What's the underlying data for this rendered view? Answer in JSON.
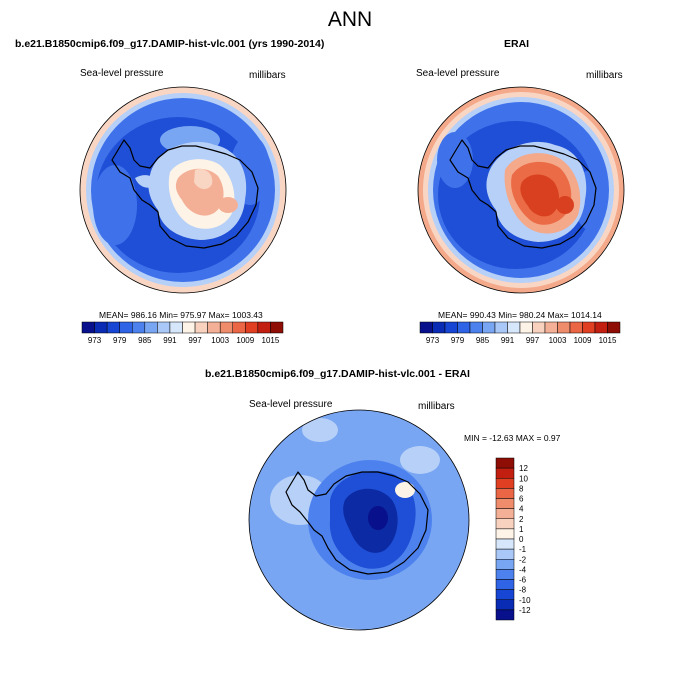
{
  "figure_title": "ANN",
  "panels": [
    {
      "title": "b.e21.B1850cmip6.f09_g17.DAMIP-hist-vlc.001 (yrs 1990-2014)",
      "variable": "Sea-level pressure",
      "units": "millibars",
      "stats": "MEAN= 986.16  Min= 975.97  Max= 1003.43"
    },
    {
      "title": "ERAI",
      "variable": "Sea-level pressure",
      "units": "millibars",
      "stats": "MEAN= 990.43  Min= 980.24  Max= 1014.14"
    },
    {
      "title": "b.e21.B1850cmip6.f09_g17.DAMIP-hist-vlc.001 - ERAI",
      "variable": "Sea-level pressure",
      "units": "millibars",
      "stats": "MIN = -12.63  MAX =   0.97"
    }
  ],
  "colorbar_slp": {
    "ticks": [
      "973",
      "979",
      "985",
      "991",
      "997",
      "1003",
      "1009",
      "1015"
    ],
    "colors": [
      "#08108c",
      "#0a2bb3",
      "#1846d4",
      "#2f64e6",
      "#4d82ee",
      "#78a6f3",
      "#a9c8f7",
      "#d6e6fb",
      "#fdf3e6",
      "#f8d2bf",
      "#f4b096",
      "#ef8c6c",
      "#ea6644",
      "#e03f22",
      "#c31f10",
      "#8e0e06"
    ]
  },
  "colorbar_diff": {
    "ticks": [
      "12",
      "10",
      "8",
      "6",
      "4",
      "2",
      "1",
      "0",
      "-1",
      "-2",
      "-4",
      "-6",
      "-8",
      "-10",
      "-12"
    ],
    "colors": [
      "#8e0e06",
      "#c31f10",
      "#e03f22",
      "#ea6644",
      "#ef8c6c",
      "#f4b096",
      "#f8d2bf",
      "#fdf3e6",
      "#d6e6fb",
      "#a9c8f7",
      "#78a6f3",
      "#4d82ee",
      "#2f64e6",
      "#1846d4",
      "#0a2bb3",
      "#08108c"
    ]
  },
  "map_colors": {
    "deep_blue": "#1e4fd6",
    "mid_blue": "#3f72ea",
    "light_blue": "#79a6f2",
    "pale_blue": "#b7d0f8",
    "pale_red": "#f9d6c4",
    "light_red": "#f3a98a",
    "mid_red": "#ea6b45",
    "deep_red": "#d9401f",
    "dark_blue": "#0b2aa3"
  }
}
